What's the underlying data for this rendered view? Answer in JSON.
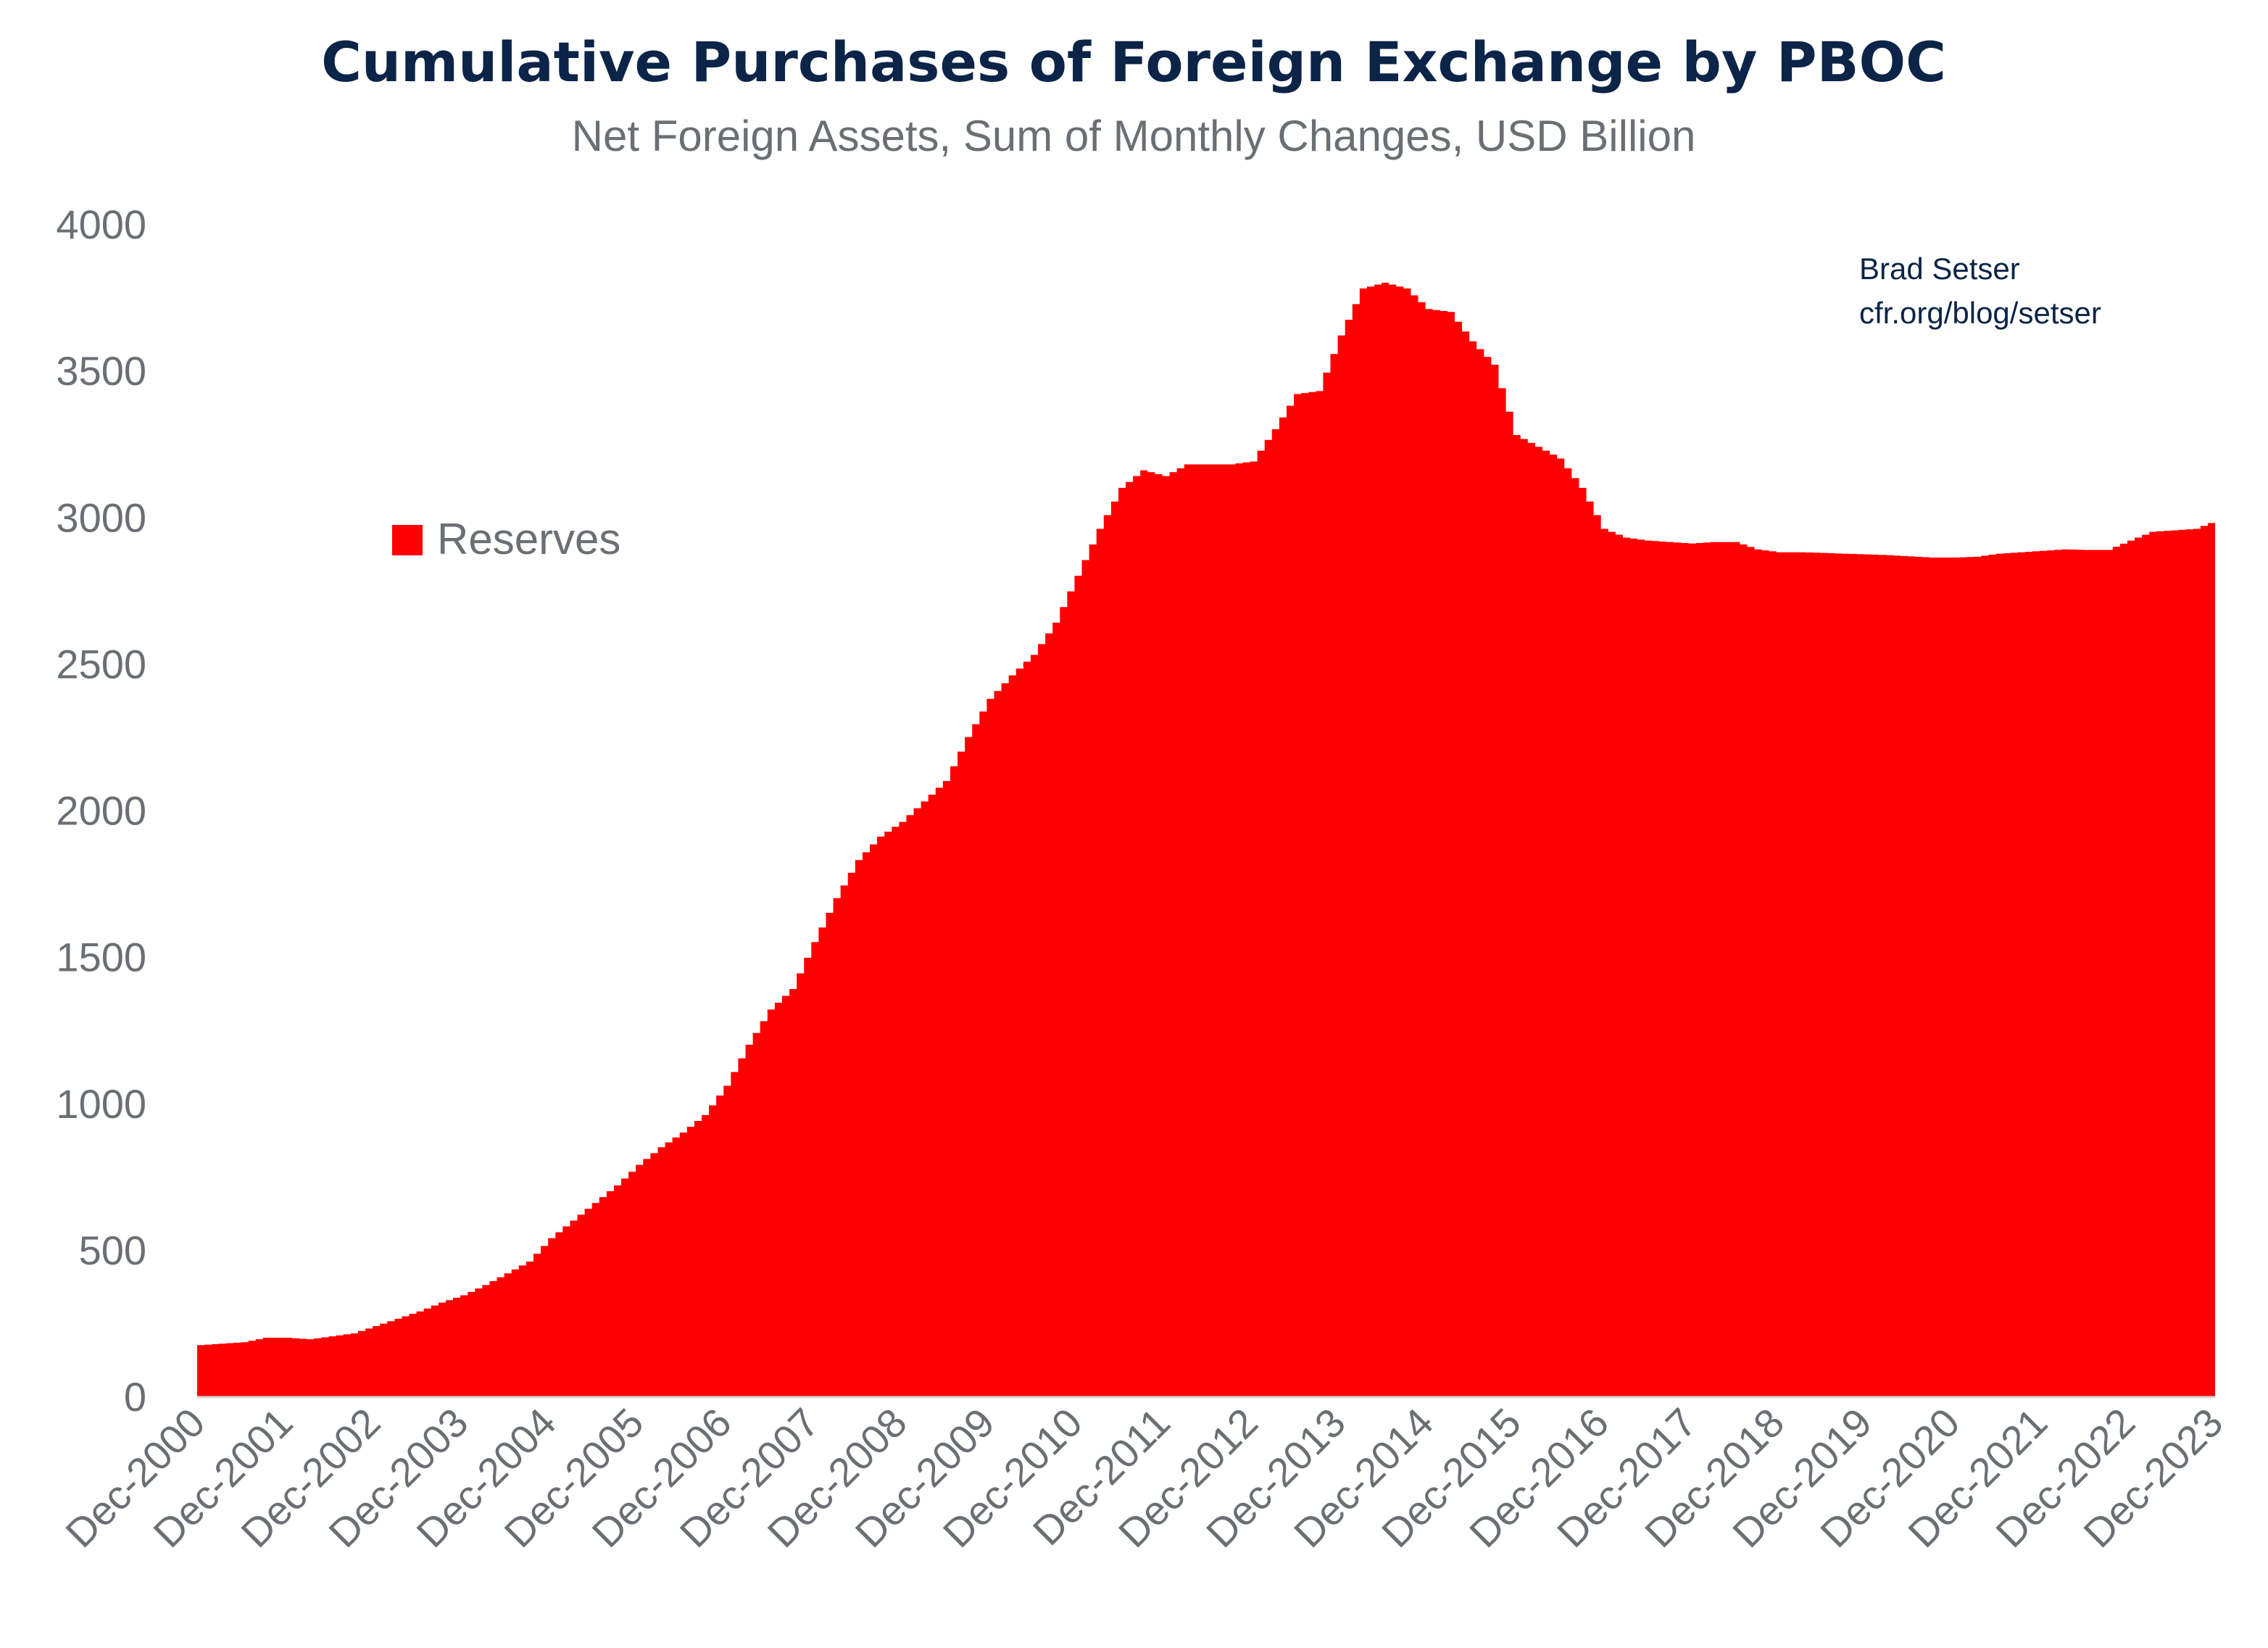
{
  "chart_data": {
    "type": "area",
    "title": "Cumulative Purchases of Foreign Exchange by PBOC",
    "subtitle": "Net Foreign Assets, Sum of Monthly Changes, USD Billion",
    "xlabel": "",
    "ylabel": "",
    "ylim": [
      0,
      4000
    ],
    "yticks": [
      "0",
      "500",
      "1000",
      "1500",
      "2000",
      "2500",
      "3000",
      "3500",
      "4000"
    ],
    "xticks": [
      "Dec-2000",
      "Dec-2001",
      "Dec-2002",
      "Dec-2003",
      "Dec-2004",
      "Dec-2005",
      "Dec-2006",
      "Dec-2007",
      "Dec-2008",
      "Dec-2009",
      "Dec-2010",
      "Dec-2011",
      "Dec-2012",
      "Dec-2013",
      "Dec-2014",
      "Dec-2015",
      "Dec-2016",
      "Dec-2017",
      "Dec-2018",
      "Dec-2019",
      "Dec-2020",
      "Dec-2021",
      "Dec-2022",
      "Dec-2023"
    ],
    "grid": false,
    "legend_position": "upper-left",
    "color": "#ff0000",
    "series": [
      {
        "name": "Reserves",
        "x_quarterly_from": "Dec-2000",
        "values": [
          175,
          180,
          185,
          200,
          200,
          195,
          205,
          215,
          240,
          265,
          290,
          320,
          345,
          380,
          420,
          460,
          540,
          600,
          660,
          720,
          790,
          850,
          900,
          960,
          1060,
          1200,
          1320,
          1390,
          1550,
          1700,
          1830,
          1910,
          1960,
          2030,
          2100,
          2250,
          2380,
          2460,
          2530,
          2640,
          2800,
          2960,
          3100,
          3160,
          3140,
          3180,
          3180,
          3180,
          3190,
          3300,
          3420,
          3430,
          3620,
          3780,
          3800,
          3780,
          3710,
          3700,
          3600,
          3520,
          3280,
          3240,
          3200,
          3100,
          2960,
          2930,
          2920,
          2915,
          2910,
          2915,
          2915,
          2890,
          2880,
          2880,
          2878,
          2875,
          2873,
          2870,
          2866,
          2862,
          2862,
          2865,
          2875,
          2880,
          2885,
          2890,
          2888,
          2888,
          2920,
          2950,
          2955,
          2960,
          2990
        ]
      }
    ],
    "annotation": [
      "Brad Setser",
      "cfr.org/blog/setser"
    ]
  }
}
